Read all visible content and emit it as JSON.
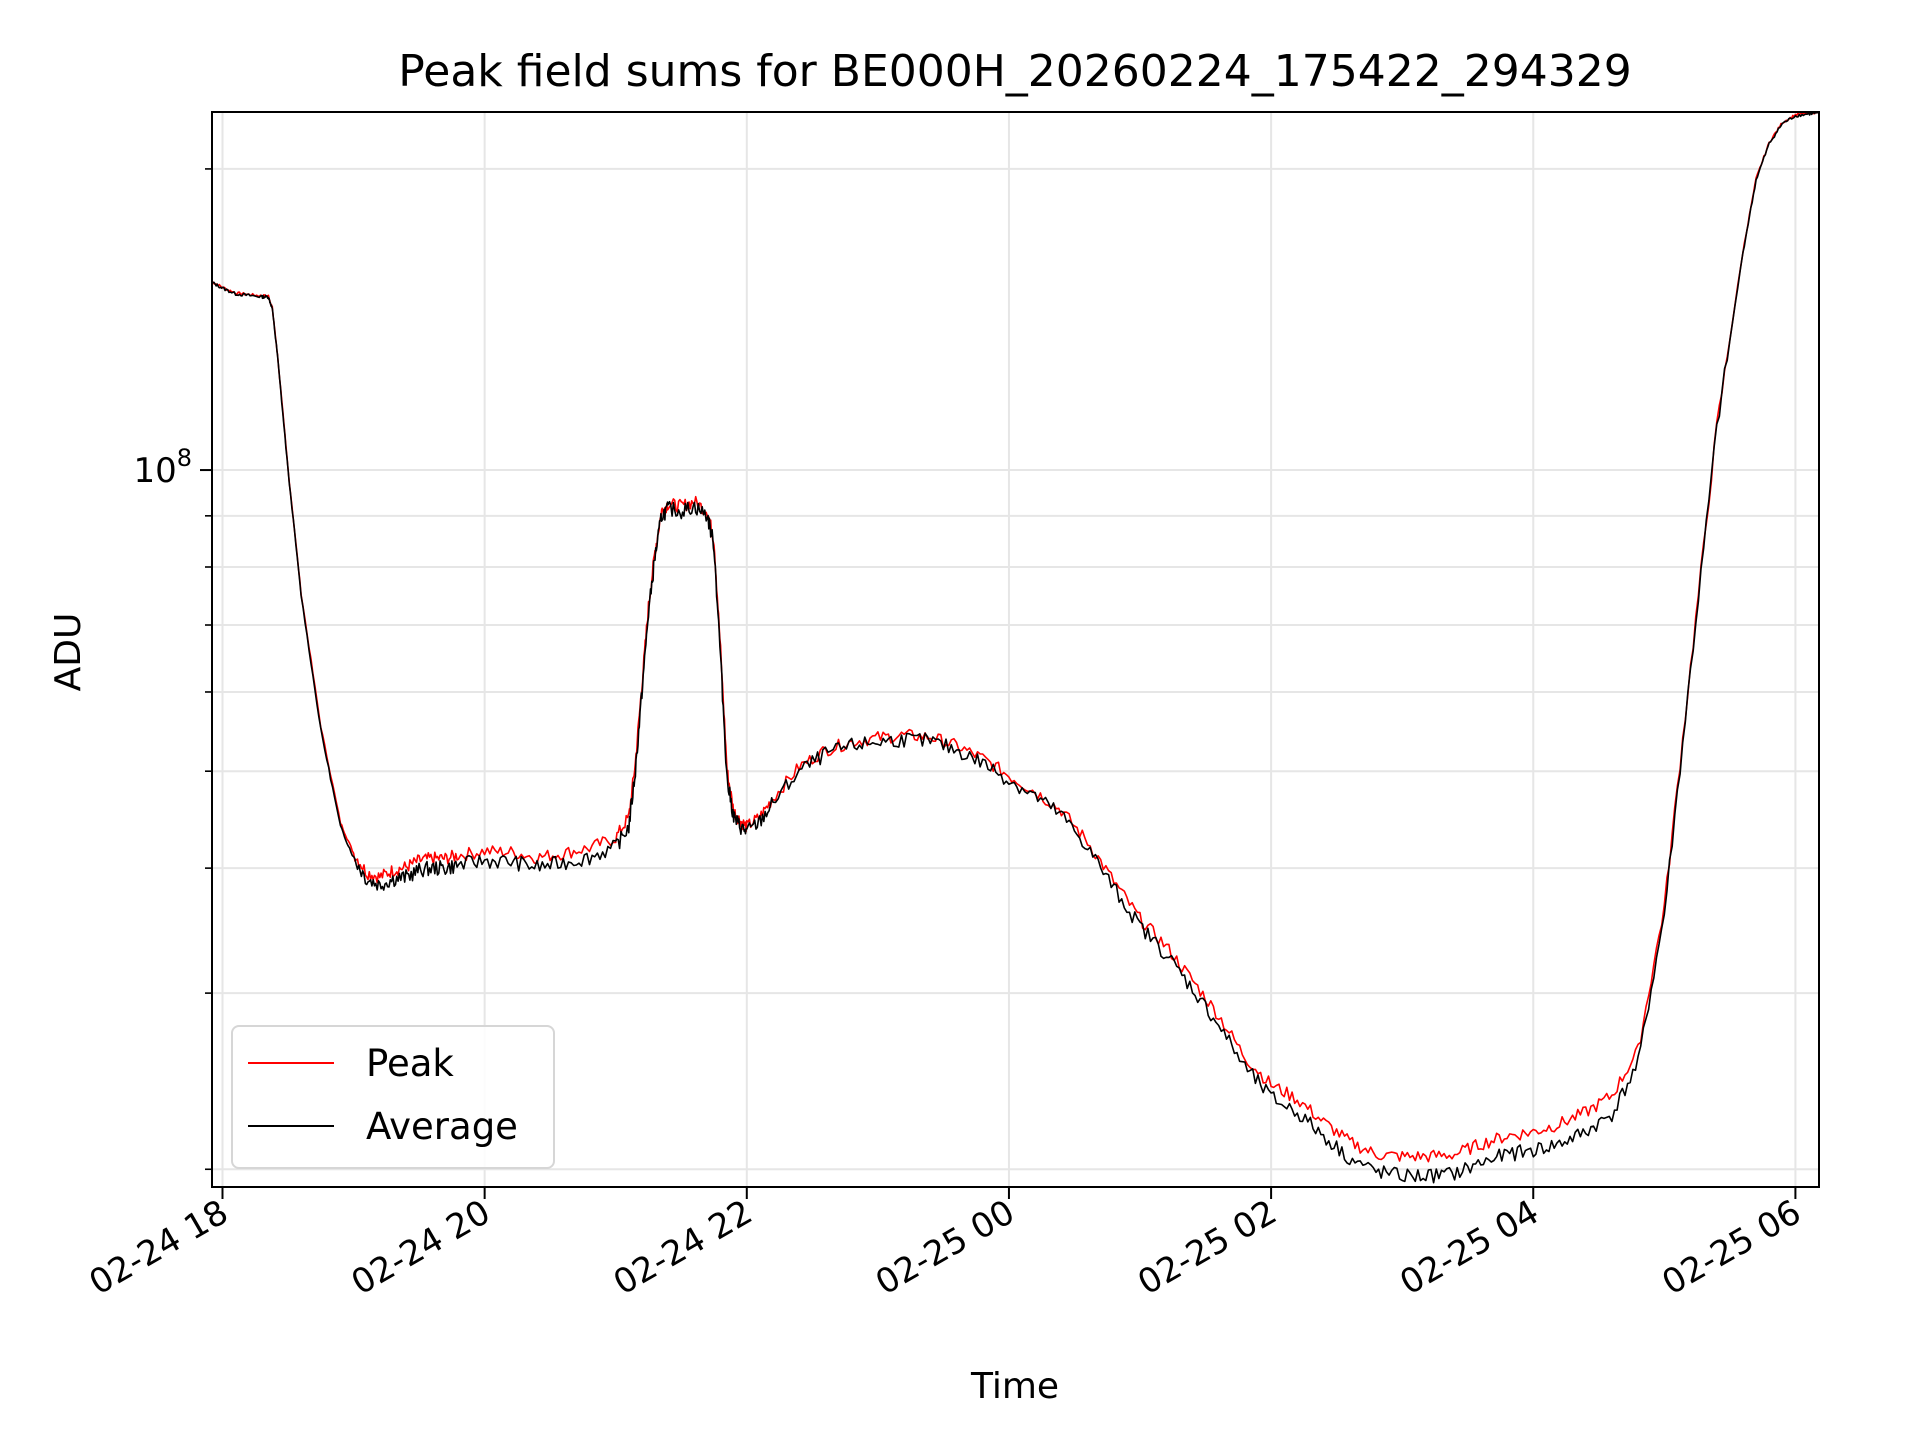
{
  "chart_data": {
    "type": "line",
    "title": "Peak field sums for BE000H_20260224_175422_294329",
    "xlabel": "Time",
    "ylabel": "ADU",
    "yscale": "log",
    "ytick_base": "10",
    "ytick_exp": "8",
    "ylim": [
      19200000,
      228000000
    ],
    "xlim_hours": [
      -0.08,
      12.18
    ],
    "grid": true,
    "legend_position": "lower left",
    "x_ticks": [
      {
        "label": "02-24 18",
        "hour": 0
      },
      {
        "label": "02-24 20",
        "hour": 2
      },
      {
        "label": "02-24 22",
        "hour": 4
      },
      {
        "label": "02-25 00",
        "hour": 6
      },
      {
        "label": "02-25 02",
        "hour": 8
      },
      {
        "label": "02-25 04",
        "hour": 10
      },
      {
        "label": "02-25 06",
        "hour": 12
      }
    ],
    "series": [
      {
        "name": "Peak",
        "color": "#ff0000"
      },
      {
        "name": "Average",
        "color": "#000000"
      }
    ],
    "x_hours": [
      -0.08,
      0.0,
      0.1,
      0.2,
      0.3,
      0.35,
      0.38,
      0.42,
      0.5,
      0.6,
      0.75,
      0.9,
      1.0,
      1.1,
      1.2,
      1.3,
      1.4,
      1.5,
      1.6,
      1.7,
      1.8,
      2.0,
      2.2,
      2.4,
      2.6,
      2.8,
      3.0,
      3.1,
      3.15,
      3.2,
      3.25,
      3.3,
      3.35,
      3.4,
      3.5,
      3.6,
      3.7,
      3.75,
      3.8,
      3.85,
      3.9,
      3.95,
      4.0,
      4.1,
      4.2,
      4.4,
      4.6,
      4.8,
      5.0,
      5.2,
      5.4,
      5.6,
      5.8,
      6.0,
      6.2,
      6.4,
      6.6,
      6.8,
      7.0,
      7.2,
      7.4,
      7.6,
      7.8,
      8.0,
      8.2,
      8.4,
      8.6,
      8.8,
      9.0,
      9.2,
      9.4,
      9.6,
      9.8,
      10.0,
      10.2,
      10.4,
      10.6,
      10.8,
      11.0,
      11.2,
      11.4,
      11.6,
      11.7,
      11.8,
      11.9,
      12.0,
      12.1,
      12.18
    ],
    "average_values": [
      154000000,
      152000000,
      150000000,
      149500000,
      149000000,
      149000000,
      145000000,
      130000000,
      100000000,
      75000000,
      55000000,
      44000000,
      41000000,
      39000000,
      38500000,
      39000000,
      39200000,
      39800000,
      40000000,
      40000000,
      40300000,
      40700000,
      40600000,
      40100000,
      40500000,
      41000000,
      42000000,
      44000000,
      50000000,
      60000000,
      72000000,
      82000000,
      90000000,
      91500000,
      91000000,
      92000000,
      90000000,
      84000000,
      65000000,
      49000000,
      45000000,
      44000000,
      43500000,
      44500000,
      46500000,
      50000000,
      52000000,
      53000000,
      53500000,
      53800000,
      53600000,
      52500000,
      51000000,
      49000000,
      47200000,
      45200000,
      42000000,
      38200000,
      35000000,
      32800000,
      30300000,
      27900000,
      25300000,
      23600000,
      22800000,
      21600000,
      20500000,
      19900000,
      19700000,
      19700000,
      19800000,
      20300000,
      20700000,
      20900000,
      21200000,
      21800000,
      22700000,
      25500000,
      36000000,
      63000000,
      110000000,
      165000000,
      195000000,
      212000000,
      222000000,
      226000000,
      227000000,
      227500000
    ],
    "peak_values": [
      154300000,
      152300000,
      150300000,
      149800000,
      149300000,
      149300000,
      145300000,
      130300000,
      100300000,
      75300000,
      55400000,
      44400000,
      41400000,
      39600000,
      39200000,
      39800000,
      40100000,
      40700000,
      40900000,
      40900000,
      41200000,
      41600000,
      41500000,
      41000000,
      41400000,
      41900000,
      42900000,
      45000000,
      51000000,
      61000000,
      73000000,
      83000000,
      91000000,
      92500000,
      92000000,
      93000000,
      91000000,
      85000000,
      66000000,
      50000000,
      45600000,
      44600000,
      44000000,
      45000000,
      47000000,
      50500000,
      52500000,
      53500000,
      54000000,
      54300000,
      54100000,
      53000000,
      51500000,
      49500000,
      47700000,
      45700000,
      42500000,
      38800000,
      35600000,
      33400000,
      30900000,
      28500000,
      25900000,
      24300000,
      23500000,
      22300000,
      21300000,
      20700000,
      20600000,
      20600000,
      20700000,
      21200000,
      21600000,
      21800000,
      22200000,
      22800000,
      23700000,
      26300000,
      36600000,
      63500000,
      110500000,
      165500000,
      195500000,
      212500000,
      222500000,
      226500000,
      227500000,
      228000000
    ]
  }
}
